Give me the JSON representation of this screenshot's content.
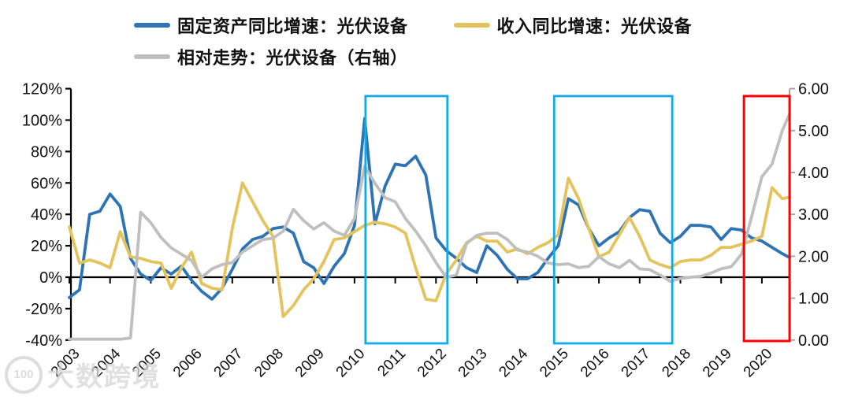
{
  "chart_data": {
    "type": "line",
    "title": "",
    "x_start": 2003,
    "x_step_years": 0.25,
    "x_tick_labels": [
      "2003",
      "2004",
      "2005",
      "2006",
      "2007",
      "2008",
      "2009",
      "2010",
      "2011",
      "2012",
      "2013",
      "2014",
      "2015",
      "2016",
      "2017",
      "2018",
      "2019",
      "2020"
    ],
    "ylim_left": [
      -40,
      120
    ],
    "ylim_right": [
      0,
      6
    ],
    "grid": false,
    "legend_position": "top-left",
    "left_axis": {
      "ticks": [
        {
          "label": "120%",
          "value": 120
        },
        {
          "label": "100%",
          "value": 100
        },
        {
          "label": "80%",
          "value": 80
        },
        {
          "label": "60%",
          "value": 60
        },
        {
          "label": "40%",
          "value": 40
        },
        {
          "label": "20%",
          "value": 20
        },
        {
          "label": "0%",
          "value": 0
        },
        {
          "label": "-20%",
          "value": -20
        },
        {
          "label": "-40%",
          "value": -40
        }
      ]
    },
    "right_axis": {
      "ticks": [
        {
          "label": "6.00",
          "value": 6
        },
        {
          "label": "5.00",
          "value": 5
        },
        {
          "label": "4.00",
          "value": 4
        },
        {
          "label": "3.00",
          "value": 3
        },
        {
          "label": "2.00",
          "value": 2
        },
        {
          "label": "1.00",
          "value": 1
        },
        {
          "label": "0.00",
          "value": 0
        }
      ]
    },
    "series": [
      {
        "name": "固定资产同比增速：光伏设备",
        "color_key": "blue",
        "axis": "left",
        "values": [
          -13,
          -8,
          40,
          42,
          53,
          45,
          12,
          2,
          -2,
          6,
          2,
          7,
          -2,
          -9,
          -14,
          -7,
          5,
          18,
          24,
          26,
          31,
          32,
          28,
          10,
          6,
          -4,
          7,
          15,
          33,
          101,
          34,
          58,
          72,
          71,
          77,
          65,
          25,
          17,
          12,
          6,
          3,
          20,
          14,
          5,
          -1,
          -1,
          3,
          12,
          20,
          50,
          46,
          31,
          20,
          25,
          29,
          38,
          43,
          42,
          28,
          22,
          26,
          33,
          33,
          32,
          24,
          31,
          30,
          25,
          23,
          19,
          15,
          12.5
        ]
      },
      {
        "name": "收入同比增速：光伏设备",
        "color_key": "yellow",
        "axis": "left",
        "values": [
          32,
          9,
          11,
          9,
          6,
          29,
          13,
          12,
          10,
          9,
          -7,
          6,
          16,
          -4,
          -7,
          -8,
          31,
          60,
          48,
          36,
          26,
          -25,
          -18,
          -8,
          -1,
          10,
          24,
          25,
          29,
          33,
          35,
          34,
          32,
          28,
          6,
          -14,
          -15,
          2,
          11,
          22,
          26,
          23,
          23,
          16,
          18,
          15,
          19,
          22,
          27,
          63,
          50,
          31,
          13,
          16,
          27,
          38,
          26,
          11,
          8,
          6,
          10,
          11,
          11,
          14,
          19,
          19,
          21,
          23,
          26,
          57,
          50,
          51
        ]
      },
      {
        "name": "相对走势：光伏设备（右轴）",
        "color_key": "gray",
        "axis": "right",
        "values": [
          0.02,
          0.02,
          0.02,
          0.02,
          0.02,
          0.02,
          0.05,
          3.05,
          2.8,
          2.45,
          2.2,
          2.05,
          1.9,
          1.5,
          1.7,
          1.8,
          1.85,
          2.1,
          2.25,
          2.4,
          2.43,
          2.6,
          3.12,
          2.85,
          2.65,
          2.8,
          2.6,
          2.5,
          2.9,
          4.15,
          3.74,
          3.4,
          3.3,
          2.9,
          2.6,
          2.25,
          1.85,
          1.5,
          1.55,
          2.3,
          2.5,
          2.55,
          2.55,
          2.4,
          2.15,
          2.1,
          2.0,
          1.84,
          1.8,
          1.82,
          1.73,
          1.76,
          1.99,
          1.82,
          1.73,
          1.9,
          1.7,
          1.68,
          1.55,
          1.4,
          1.47,
          1.5,
          1.52,
          1.6,
          1.7,
          1.75,
          2.05,
          2.95,
          3.9,
          4.2,
          5.0,
          5.4
        ]
      }
    ],
    "highlight_boxes": [
      {
        "x_from": 2010.27,
        "x_to": 2012.28,
        "color_key": "box_cyan"
      },
      {
        "x_from": 2014.9,
        "x_to": 2017.8,
        "color_key": "box_cyan"
      },
      {
        "x_from": 2019.56,
        "x_to": 2020.68,
        "color_key": "box_red"
      }
    ],
    "colors": {
      "blue": "#2E74B5",
      "yellow": "#E5C35C",
      "gray": "#BFBFBF",
      "box_cyan": "#12AAE8",
      "box_red": "#FF0000",
      "axis": "#000000",
      "right_axis_line": "#A6A6A6",
      "label": "#111111"
    }
  },
  "watermark": {
    "logo_text": "100",
    "text": "大数跨境"
  }
}
